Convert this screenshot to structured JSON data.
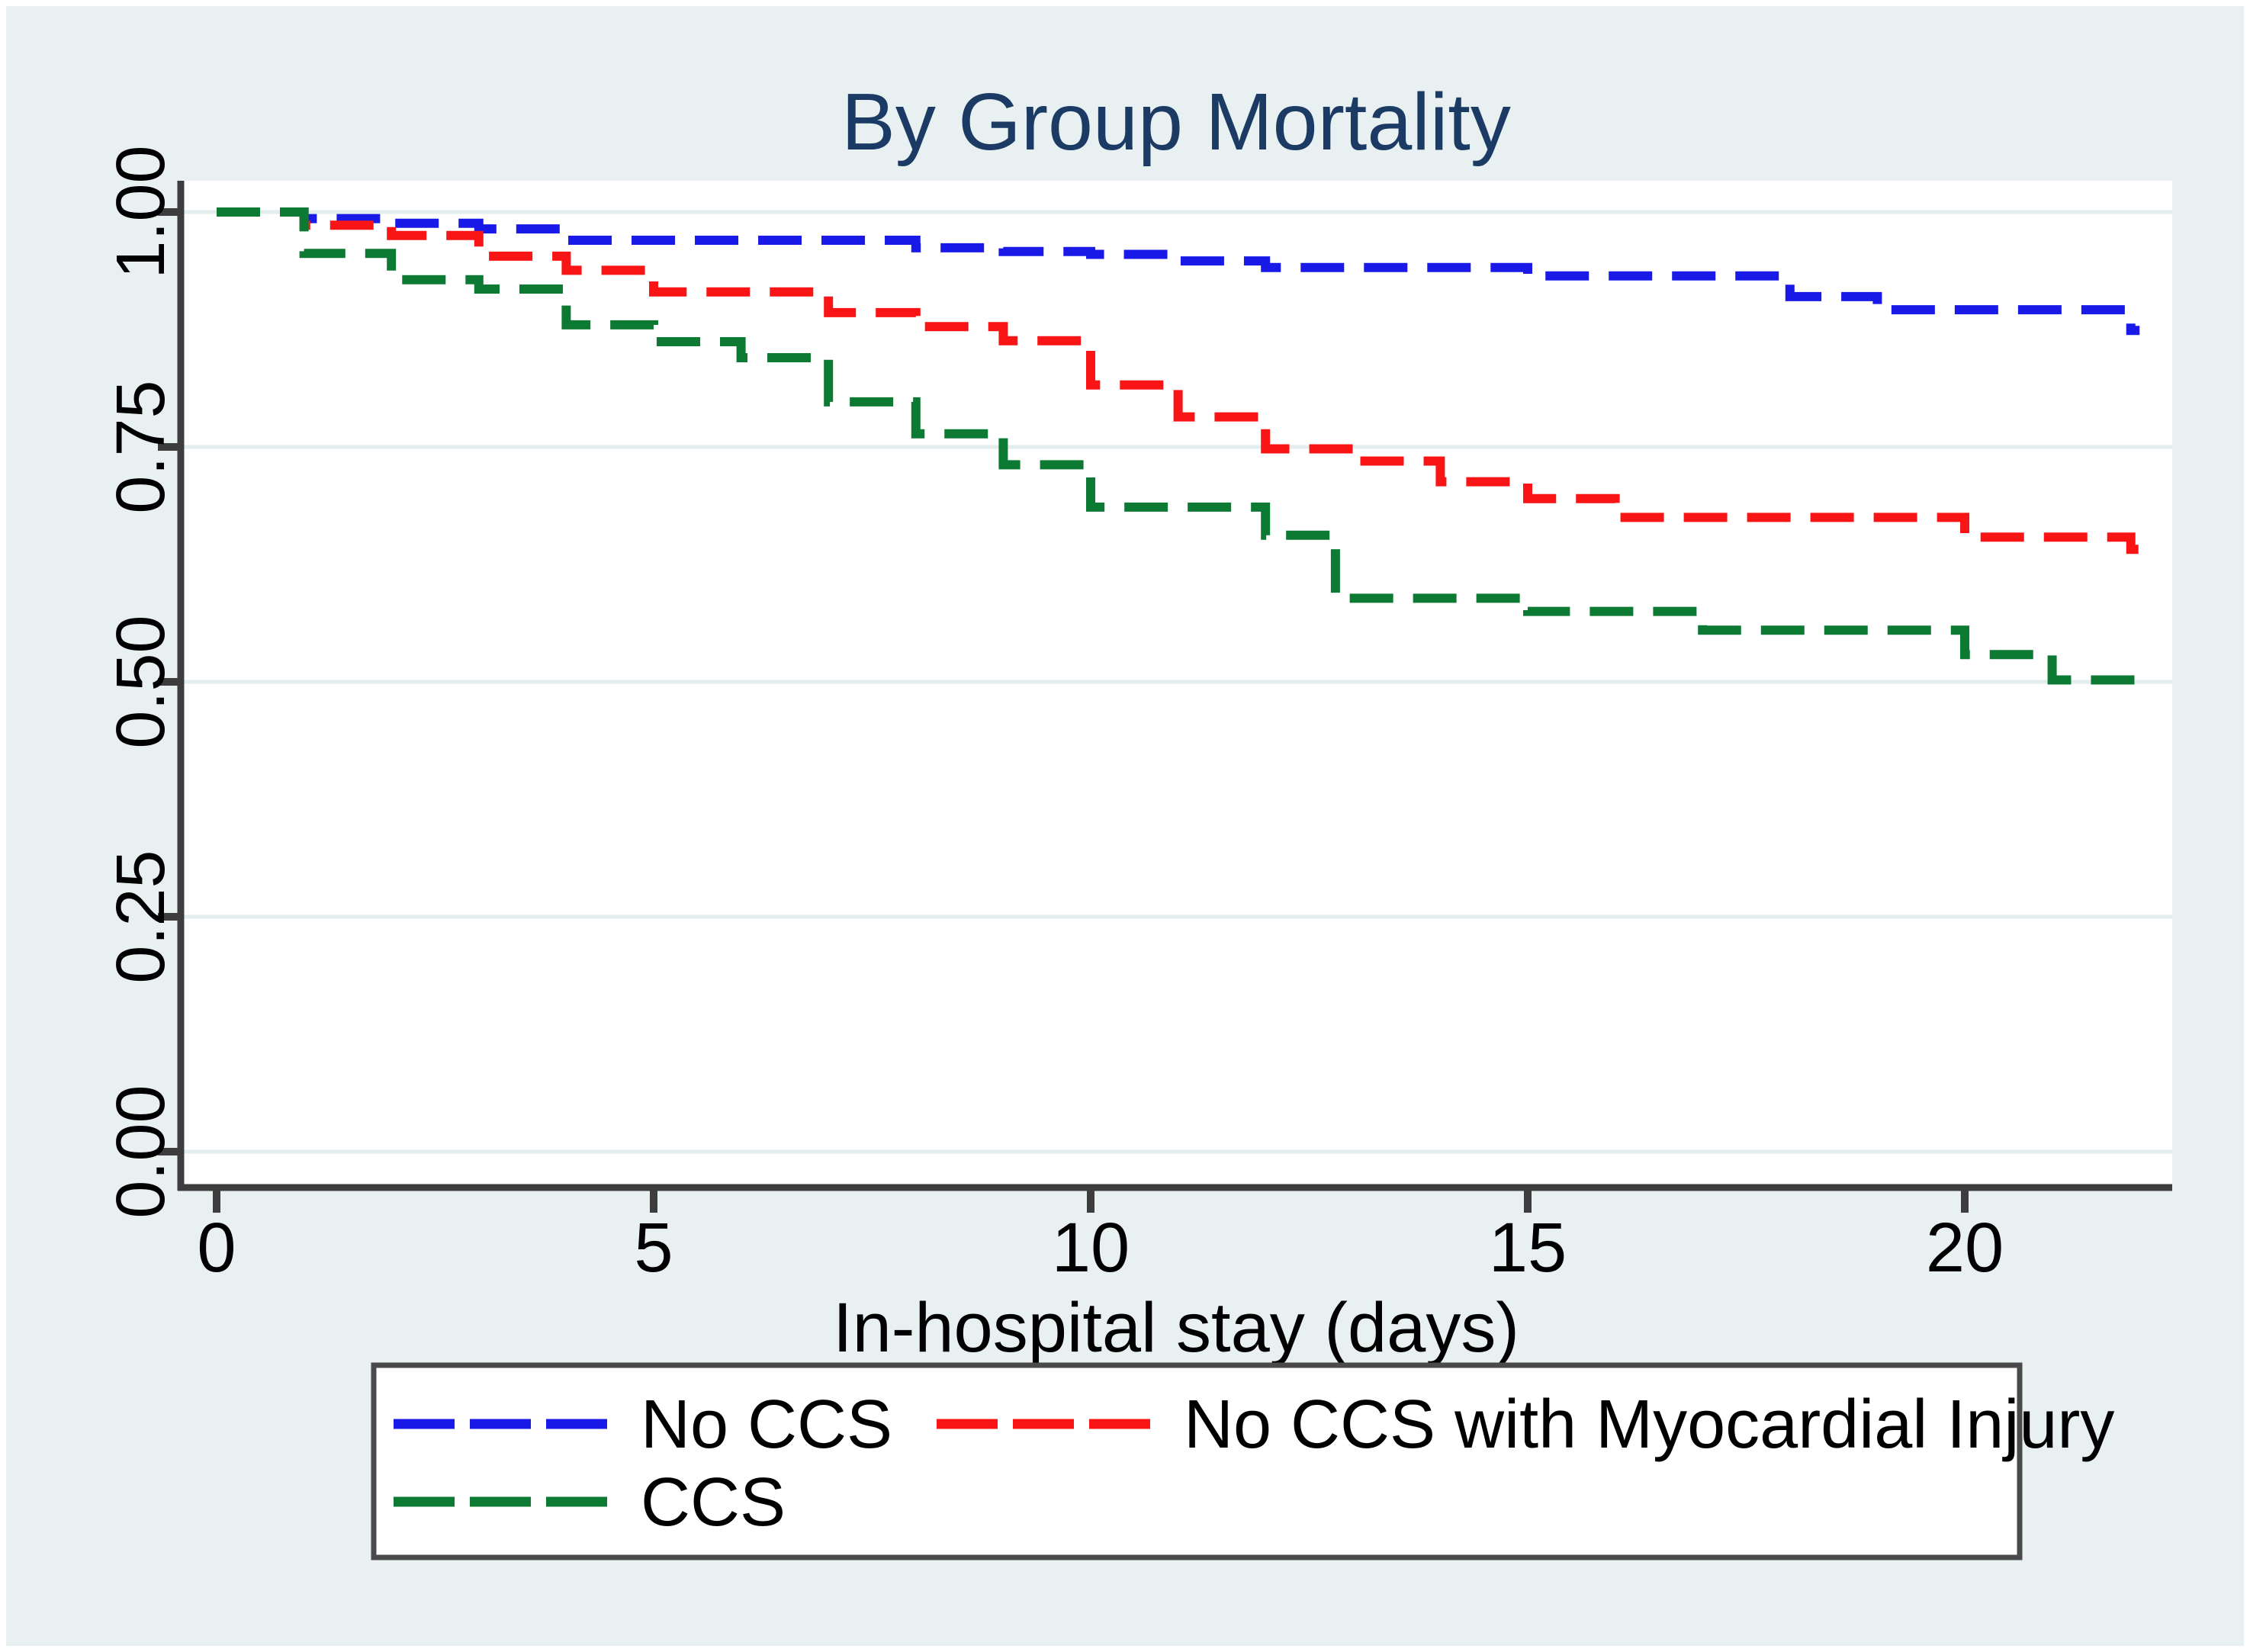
{
  "page": {
    "background_color": "#e8f0f1",
    "frame_color": "#ffffff",
    "plot_background": "#ffffff",
    "grid_color": "#e2edee",
    "axis_color": "#3d3d3d",
    "text_color": "#000000"
  },
  "chart_data": {
    "type": "line",
    "subtype": "kaplan-meier-step",
    "title": "By Group Mortality",
    "title_color": "#1b3a64",
    "xlabel": "In-hospital stay (days)",
    "ylabel": "",
    "xlim": [
      0,
      22.5
    ],
    "ylim": [
      0.0,
      1.0
    ],
    "grid": "horizontal",
    "legend_position": "bottom",
    "xticks": [
      {
        "v": 0,
        "label": "0"
      },
      {
        "v": 5,
        "label": "5"
      },
      {
        "v": 10,
        "label": "10"
      },
      {
        "v": 15,
        "label": "15"
      },
      {
        "v": 20,
        "label": "20"
      }
    ],
    "yticks": [
      {
        "v": 1.0,
        "label": "1.00"
      },
      {
        "v": 0.75,
        "label": "0.75"
      },
      {
        "v": 0.5,
        "label": "0.50"
      },
      {
        "v": 0.25,
        "label": "0.25"
      },
      {
        "v": 0.0,
        "label": "0.00"
      }
    ],
    "series": [
      {
        "name": "No CCS",
        "color": "#1a1ae8",
        "line_style": "dashed",
        "points": [
          [
            0,
            1.0
          ],
          [
            1,
            0.993
          ],
          [
            2,
            0.988
          ],
          [
            3,
            0.982
          ],
          [
            4,
            0.97
          ],
          [
            8,
            0.962
          ],
          [
            9,
            0.958
          ],
          [
            10,
            0.955
          ],
          [
            11,
            0.948
          ],
          [
            12,
            0.941
          ],
          [
            15,
            0.932
          ],
          [
            18,
            0.91
          ],
          [
            19,
            0.896
          ],
          [
            21.9,
            0.874
          ],
          [
            22,
            0.874
          ]
        ]
      },
      {
        "name": "No CCS with Myocardial Injury",
        "color": "#f91515",
        "line_style": "dashed",
        "points": [
          [
            0,
            1.0
          ],
          [
            1,
            0.986
          ],
          [
            2,
            0.975
          ],
          [
            3,
            0.953
          ],
          [
            4,
            0.938
          ],
          [
            5,
            0.915
          ],
          [
            7,
            0.893
          ],
          [
            8,
            0.878
          ],
          [
            9,
            0.863
          ],
          [
            10,
            0.816
          ],
          [
            11,
            0.782
          ],
          [
            12,
            0.748
          ],
          [
            13,
            0.735
          ],
          [
            14,
            0.713
          ],
          [
            15,
            0.695
          ],
          [
            16,
            0.675
          ],
          [
            20,
            0.654
          ],
          [
            21.9,
            0.641
          ],
          [
            22,
            0.641
          ]
        ]
      },
      {
        "name": "CCS",
        "color": "#0d7a33",
        "line_style": "dashed",
        "points": [
          [
            0,
            1.0
          ],
          [
            1,
            0.956
          ],
          [
            2,
            0.928
          ],
          [
            3,
            0.918
          ],
          [
            4,
            0.88
          ],
          [
            5,
            0.862
          ],
          [
            6,
            0.845
          ],
          [
            7,
            0.798
          ],
          [
            8,
            0.764
          ],
          [
            9,
            0.731
          ],
          [
            10,
            0.686
          ],
          [
            12,
            0.656
          ],
          [
            12.8,
            0.589
          ],
          [
            15,
            0.575
          ],
          [
            17,
            0.555
          ],
          [
            20,
            0.529
          ],
          [
            21,
            0.502
          ],
          [
            22,
            0.502
          ]
        ]
      }
    ]
  }
}
